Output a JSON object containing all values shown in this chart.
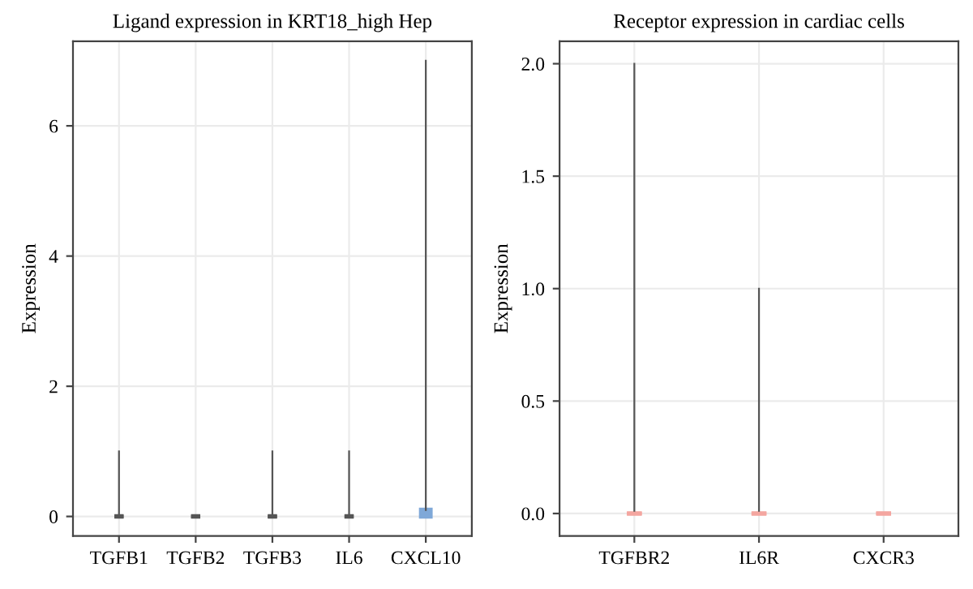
{
  "chart_data": [
    {
      "type": "box",
      "title": "Ligand expression in KRT18_high Hep",
      "ylabel": "Expression",
      "categories": [
        "TGFB1",
        "TGFB2",
        "TGFB3",
        "IL6",
        "CXCL10"
      ],
      "boxes": [
        {
          "low": 0,
          "q1": 0,
          "median": 0,
          "q3": 0,
          "high": 1
        },
        {
          "low": 0,
          "q1": 0,
          "median": 0,
          "q3": 0,
          "high": 0
        },
        {
          "low": 0,
          "q1": 0,
          "median": 0,
          "q3": 0,
          "high": 1
        },
        {
          "low": 0,
          "q1": 0,
          "median": 0,
          "q3": 0,
          "high": 1
        },
        {
          "low": 0,
          "q1": 0,
          "median": 0,
          "q3": 0.1,
          "high": 7
        }
      ],
      "colors": [
        "#555555",
        "#555555",
        "#555555",
        "#555555",
        "#7fa8d8"
      ],
      "ylim": [
        -0.3,
        7.3
      ],
      "yticks": [
        0,
        2,
        4,
        6
      ],
      "grid": true
    },
    {
      "type": "box",
      "title": "Receptor expression in cardiac cells",
      "ylabel": "Expression",
      "categories": [
        "TGFBR2",
        "IL6R",
        "CXCR3"
      ],
      "boxes": [
        {
          "low": 0,
          "q1": 0,
          "median": 0,
          "q3": 0,
          "high": 2.0
        },
        {
          "low": 0,
          "q1": 0,
          "median": 0,
          "q3": 0,
          "high": 1.0
        },
        {
          "low": 0,
          "q1": 0,
          "median": 0,
          "q3": 0,
          "high": 0
        }
      ],
      "colors": [
        "#f4a6a0",
        "#f4a6a0",
        "#f4a6a0"
      ],
      "ylim": [
        -0.1,
        2.1
      ],
      "yticks": [
        {
          "value": 0,
          "label": "0.0"
        },
        {
          "value": 0.5,
          "label": "0.5"
        },
        {
          "value": 1,
          "label": "1.0"
        },
        {
          "value": 1.5,
          "label": "1.5"
        },
        {
          "value": 2,
          "label": "2.0"
        }
      ],
      "grid": true
    }
  ]
}
